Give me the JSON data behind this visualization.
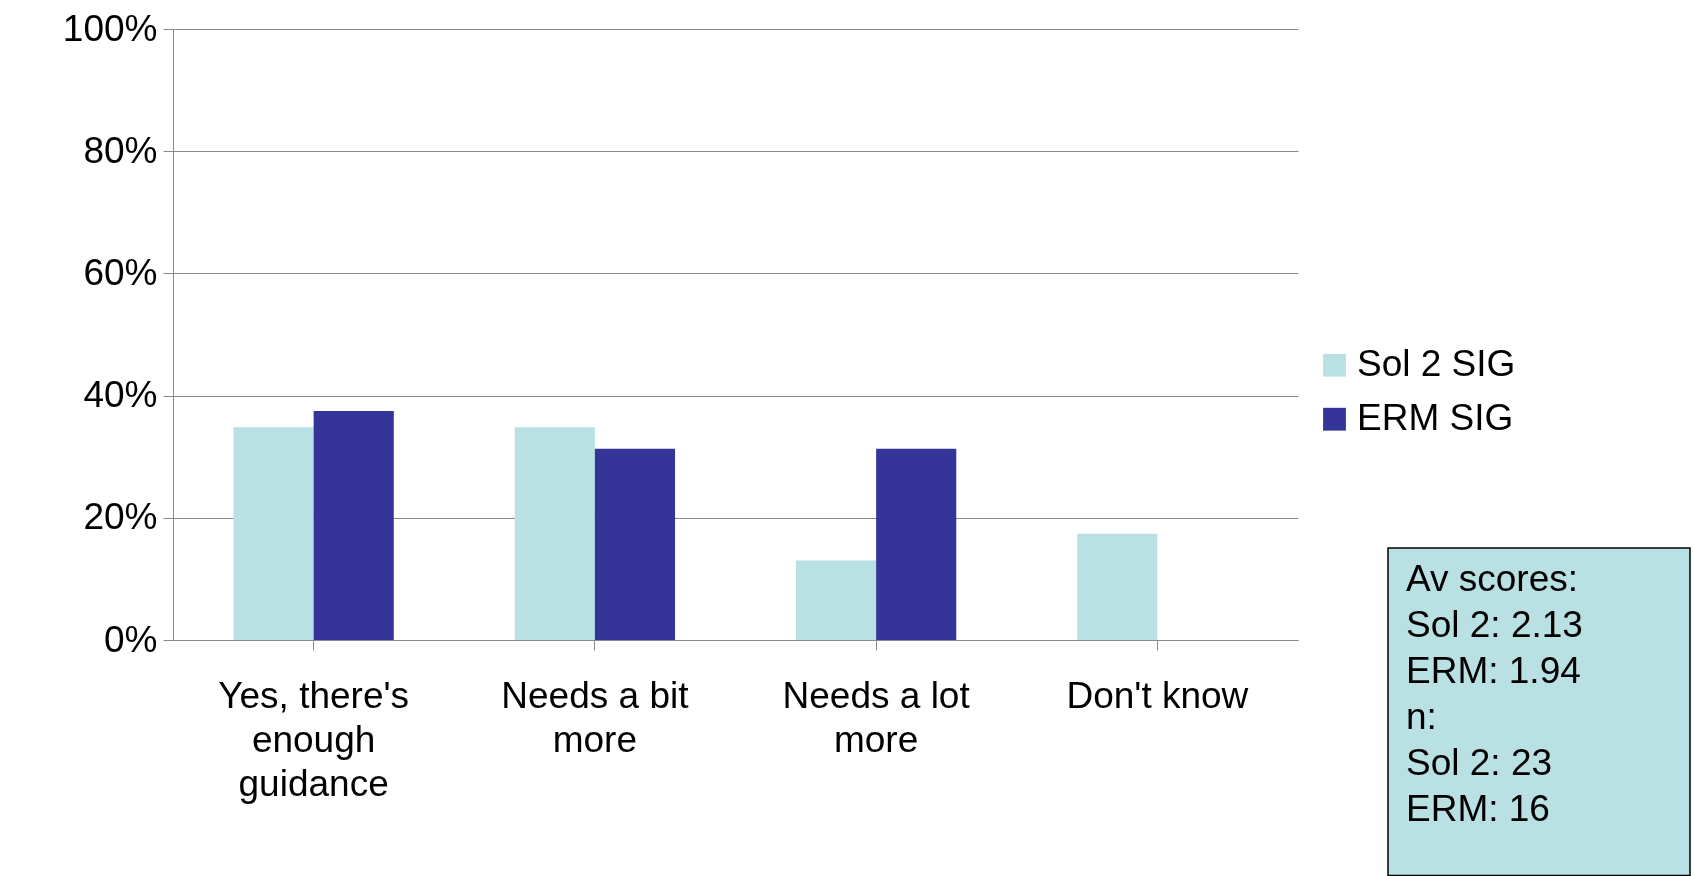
{
  "chart_data": {
    "type": "bar",
    "categories": [
      "Yes, there's enough guidance",
      "Needs a bit more",
      "Needs a lot more",
      "Don't know"
    ],
    "series": [
      {
        "name": "Sol 2 SIG",
        "color": "#b9e0e3",
        "values": [
          34.8,
          34.8,
          13,
          17.4
        ]
      },
      {
        "name": "ERM SIG",
        "color": "#353599",
        "values": [
          37.5,
          31.3,
          31.3,
          0
        ]
      }
    ],
    "ylim": [
      0,
      100
    ],
    "yticks": [
      {
        "value": 0,
        "label": "0%"
      },
      {
        "value": 20,
        "label": "20%"
      },
      {
        "value": 40,
        "label": "40%"
      },
      {
        "value": 60,
        "label": "60%"
      },
      {
        "value": 80,
        "label": "80%"
      },
      {
        "value": 100,
        "label": "100%"
      }
    ],
    "grid": "y",
    "legend": "right",
    "annotations": [
      "Av scores:",
      "Sol 2: 2.13",
      "ERM: 1.94",
      "n:",
      "Sol 2: 23",
      "ERM: 16"
    ]
  }
}
